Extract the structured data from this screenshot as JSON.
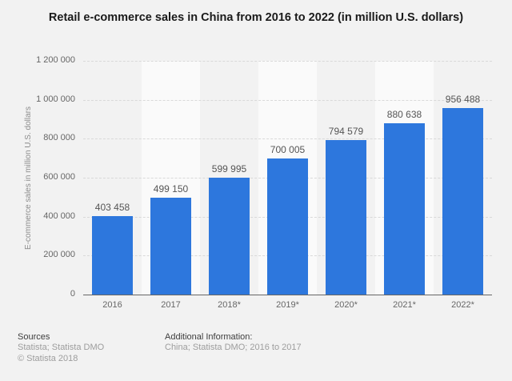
{
  "chart_data": {
    "type": "bar",
    "title": "Retail e-commerce sales in China from 2016 to 2022 (in million U.S. dollars)",
    "categories": [
      "2016",
      "2017",
      "2018*",
      "2019*",
      "2020*",
      "2021*",
      "2022*"
    ],
    "values": [
      403458,
      499150,
      599995,
      700005,
      794579,
      880638,
      956488
    ],
    "value_labels": [
      "403 458",
      "499 150",
      "599 995",
      "700 005",
      "794 579",
      "880 638",
      "956 488"
    ],
    "xlabel": "",
    "ylabel": "E-commerce sales in million U.S. dollars",
    "ylim": [
      0,
      1200000
    ],
    "ytick_labels": [
      "0",
      "200 000",
      "400 000",
      "600 000",
      "800 000",
      "1 000 000",
      "1 200 000"
    ],
    "grid": "horizontal-dashed",
    "legend": "none",
    "bar_color": "#2d77dd",
    "alternate_band_color": "#fafafa",
    "background_color": "#f2f2f2"
  },
  "footer": {
    "sources_heading": "Sources",
    "sources_lines": [
      "Statista; Statista DMO",
      "© Statista 2018"
    ],
    "additional_heading": "Additional Information:",
    "additional_lines": [
      "China; Statista DMO; 2016 to 2017"
    ]
  }
}
